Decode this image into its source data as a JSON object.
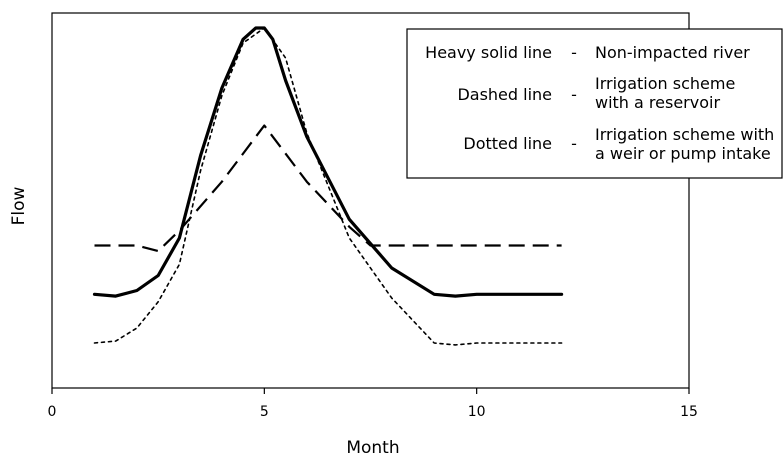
{
  "chart_data": {
    "type": "line",
    "title": "",
    "xlabel": "Month",
    "ylabel": "Flow",
    "xlim": [
      0,
      15
    ],
    "ylim": [
      0,
      100
    ],
    "x_ticks": [
      "0",
      "5",
      "10",
      "15"
    ],
    "y_ticks": [],
    "grid": false,
    "legend_position": "top-right",
    "legend": [
      {
        "key": "Heavy solid line",
        "dash": "-",
        "value": [
          "Non-impacted river"
        ]
      },
      {
        "key": "Dashed line",
        "dash": "-",
        "value": [
          "Irrigation scheme",
          "with a reservoir"
        ]
      },
      {
        "key": "Dotted line",
        "dash": "-",
        "value": [
          "Irrigation scheme with",
          "a weir or pump intake"
        ]
      }
    ],
    "series": [
      {
        "style": "solid",
        "x": [
          1,
          1.5,
          2,
          2.5,
          3,
          3.5,
          4,
          4.5,
          4.8,
          5,
          5.2,
          5.5,
          6,
          7,
          8,
          9,
          9.5,
          10,
          11,
          12
        ],
        "y": [
          25,
          24.5,
          26,
          30,
          40,
          62,
          80,
          93,
          96,
          96,
          93,
          82,
          67,
          45,
          32,
          25,
          24.5,
          25,
          25,
          25
        ]
      },
      {
        "style": "dashed",
        "x": [
          1,
          2,
          2.5,
          3,
          4,
          5,
          6,
          7,
          7.5,
          8,
          9,
          10,
          11,
          12
        ],
        "y": [
          38,
          38,
          36.5,
          42,
          55,
          70,
          55,
          43,
          38,
          38,
          38,
          38,
          38,
          38
        ]
      },
      {
        "style": "dotted",
        "x": [
          1,
          1.5,
          2,
          2.5,
          3,
          3.5,
          4,
          4.5,
          5,
          5.5,
          6,
          7,
          8,
          9,
          9.5,
          10,
          11,
          12
        ],
        "y": [
          12,
          12.5,
          16,
          23,
          33,
          58,
          78,
          92,
          96,
          88,
          68,
          40,
          24,
          12,
          11.5,
          12,
          12,
          12
        ]
      }
    ]
  }
}
